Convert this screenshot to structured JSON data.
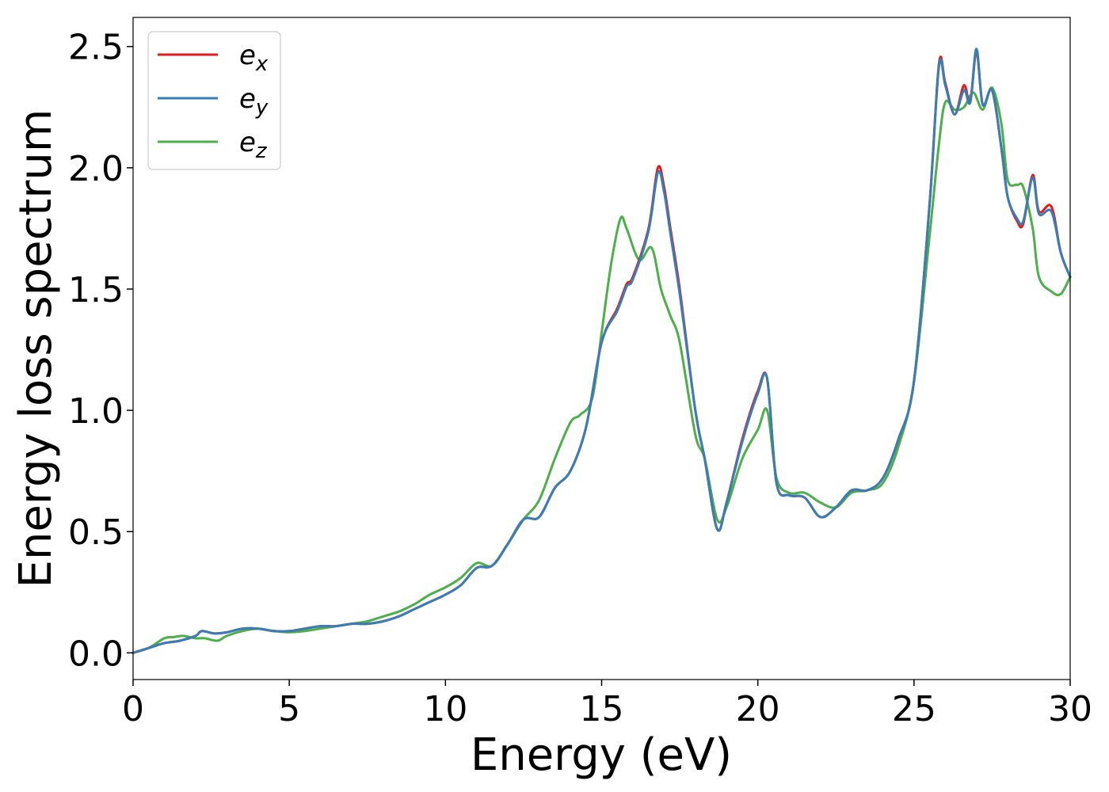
{
  "chart_data": {
    "type": "line",
    "xlabel": "Energy (eV)",
    "ylabel": "Energy loss spectrum",
    "xlim": [
      0,
      30
    ],
    "ylim": [
      -0.11,
      2.62
    ],
    "xticks": [
      0,
      5,
      10,
      15,
      20,
      25,
      30
    ],
    "xtick_labels": [
      "0",
      "5",
      "10",
      "15",
      "20",
      "25",
      "30"
    ],
    "yticks": [
      0.0,
      0.5,
      1.0,
      1.5,
      2.0,
      2.5
    ],
    "ytick_labels": [
      "0.0",
      "0.5",
      "1.0",
      "1.5",
      "2.0",
      "2.5"
    ],
    "grid": false,
    "legend": "top-left",
    "series": [
      {
        "name": "e",
        "subscript": "x",
        "color": "#e41a1c",
        "x": [
          0,
          0.5,
          1.0,
          1.5,
          2.0,
          2.2,
          2.6,
          3.0,
          3.5,
          4.0,
          4.5,
          5.0,
          5.5,
          6.0,
          6.5,
          7.0,
          7.5,
          8.0,
          8.5,
          9.0,
          9.5,
          10.0,
          10.5,
          11.0,
          11.5,
          12.0,
          12.5,
          13.0,
          13.5,
          14.0,
          14.5,
          15.0,
          15.5,
          15.8,
          16.0,
          16.5,
          16.8,
          17.0,
          17.2,
          17.5,
          18.0,
          18.3,
          18.7,
          19.0,
          19.5,
          20.0,
          20.3,
          20.6,
          21.0,
          21.5,
          22.0,
          22.5,
          23.0,
          23.5,
          24.0,
          24.5,
          25.0,
          25.5,
          25.8,
          26.0,
          26.3,
          26.6,
          26.8,
          27.0,
          27.2,
          27.5,
          27.8,
          28.0,
          28.3,
          28.5,
          28.8,
          29.0,
          29.4,
          29.7,
          30.0
        ],
        "values": [
          0.0,
          0.02,
          0.04,
          0.05,
          0.07,
          0.09,
          0.08,
          0.085,
          0.1,
          0.1,
          0.09,
          0.09,
          0.1,
          0.11,
          0.11,
          0.12,
          0.12,
          0.13,
          0.15,
          0.18,
          0.21,
          0.24,
          0.28,
          0.35,
          0.36,
          0.45,
          0.55,
          0.56,
          0.68,
          0.75,
          0.93,
          1.28,
          1.42,
          1.52,
          1.55,
          1.75,
          2.0,
          1.92,
          1.75,
          1.5,
          1.0,
          0.8,
          0.51,
          0.62,
          0.88,
          1.08,
          1.13,
          0.7,
          0.65,
          0.64,
          0.56,
          0.6,
          0.67,
          0.67,
          0.72,
          0.88,
          1.12,
          1.85,
          2.43,
          2.35,
          2.22,
          2.34,
          2.27,
          2.48,
          2.26,
          2.32,
          2.08,
          1.88,
          1.78,
          1.77,
          1.97,
          1.82,
          1.84,
          1.65,
          1.55
        ]
      },
      {
        "name": "e",
        "subscript": "y",
        "color": "#377eb8",
        "x": [
          0,
          0.5,
          1.0,
          1.5,
          2.0,
          2.2,
          2.6,
          3.0,
          3.5,
          4.0,
          4.5,
          5.0,
          5.5,
          6.0,
          6.5,
          7.0,
          7.5,
          8.0,
          8.5,
          9.0,
          9.5,
          10.0,
          10.5,
          11.0,
          11.5,
          12.0,
          12.5,
          13.0,
          13.5,
          14.0,
          14.5,
          15.0,
          15.5,
          15.8,
          16.0,
          16.5,
          16.8,
          17.0,
          17.2,
          17.5,
          18.0,
          18.3,
          18.7,
          19.0,
          19.5,
          20.0,
          20.3,
          20.6,
          21.0,
          21.5,
          22.0,
          22.5,
          23.0,
          23.5,
          24.0,
          24.5,
          25.0,
          25.5,
          25.8,
          26.0,
          26.3,
          26.6,
          26.8,
          27.0,
          27.2,
          27.5,
          27.8,
          28.0,
          28.3,
          28.5,
          28.8,
          29.0,
          29.4,
          29.7,
          30.0
        ],
        "values": [
          0.0,
          0.02,
          0.04,
          0.05,
          0.07,
          0.09,
          0.08,
          0.085,
          0.1,
          0.1,
          0.09,
          0.09,
          0.1,
          0.11,
          0.11,
          0.12,
          0.12,
          0.13,
          0.15,
          0.18,
          0.21,
          0.24,
          0.28,
          0.35,
          0.36,
          0.45,
          0.55,
          0.56,
          0.68,
          0.75,
          0.93,
          1.28,
          1.41,
          1.51,
          1.54,
          1.74,
          1.98,
          1.9,
          1.73,
          1.48,
          1.0,
          0.8,
          0.51,
          0.62,
          0.87,
          1.07,
          1.13,
          0.7,
          0.65,
          0.64,
          0.56,
          0.6,
          0.67,
          0.67,
          0.72,
          0.88,
          1.12,
          1.85,
          2.42,
          2.34,
          2.22,
          2.32,
          2.27,
          2.49,
          2.26,
          2.32,
          2.08,
          1.88,
          1.79,
          1.78,
          1.96,
          1.81,
          1.82,
          1.65,
          1.55
        ]
      },
      {
        "name": "e",
        "subscript": "z",
        "color": "#4daf4a",
        "x": [
          0,
          0.5,
          1.0,
          1.3,
          1.6,
          2.0,
          2.3,
          2.7,
          3.0,
          3.5,
          4.0,
          4.5,
          5.0,
          5.5,
          6.0,
          6.5,
          7.0,
          7.5,
          8.0,
          8.5,
          9.0,
          9.5,
          10.0,
          10.5,
          11.0,
          11.5,
          12.0,
          12.5,
          13.0,
          13.5,
          14.0,
          14.3,
          14.7,
          15.0,
          15.3,
          15.6,
          15.8,
          16.2,
          16.6,
          16.9,
          17.2,
          17.5,
          18.0,
          18.3,
          18.7,
          19.0,
          19.5,
          20.0,
          20.3,
          20.6,
          21.0,
          21.5,
          22.0,
          22.5,
          23.0,
          23.5,
          24.0,
          24.5,
          25.0,
          25.5,
          25.8,
          26.0,
          26.3,
          26.6,
          26.9,
          27.2,
          27.5,
          27.8,
          28.0,
          28.3,
          28.5,
          28.8,
          29.0,
          29.4,
          29.7,
          30.0
        ],
        "values": [
          0.0,
          0.02,
          0.06,
          0.065,
          0.07,
          0.06,
          0.06,
          0.05,
          0.07,
          0.09,
          0.1,
          0.09,
          0.085,
          0.09,
          0.1,
          0.11,
          0.12,
          0.13,
          0.15,
          0.17,
          0.2,
          0.24,
          0.27,
          0.31,
          0.37,
          0.36,
          0.45,
          0.55,
          0.63,
          0.8,
          0.95,
          0.98,
          1.05,
          1.32,
          1.6,
          1.79,
          1.75,
          1.62,
          1.67,
          1.5,
          1.39,
          1.28,
          0.9,
          0.8,
          0.55,
          0.6,
          0.8,
          0.92,
          1.0,
          0.72,
          0.66,
          0.66,
          0.62,
          0.6,
          0.66,
          0.67,
          0.7,
          0.85,
          1.12,
          1.72,
          2.1,
          2.27,
          2.24,
          2.25,
          2.31,
          2.24,
          2.33,
          2.18,
          1.95,
          1.93,
          1.92,
          1.75,
          1.55,
          1.49,
          1.48,
          1.55
        ]
      }
    ]
  }
}
